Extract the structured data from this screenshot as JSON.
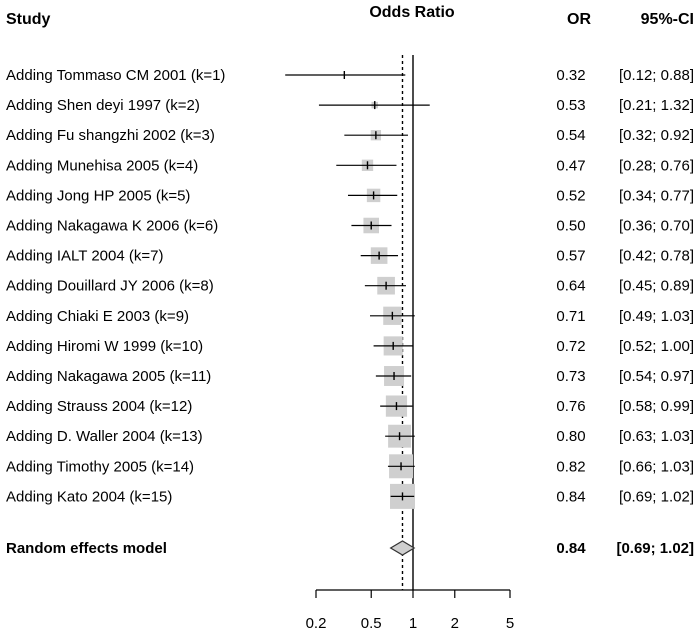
{
  "header": {
    "study": "Study",
    "plot": "Odds Ratio",
    "or": "OR",
    "ci": "95%-CI"
  },
  "chart_data": {
    "type": "forest",
    "x_scale": "log",
    "xlim": [
      0.2,
      5
    ],
    "x_ticks": [
      0.2,
      0.5,
      1,
      2,
      5
    ],
    "x_tick_labels": [
      "0.2",
      "0.5",
      "1",
      "2",
      "5"
    ],
    "null_line": 1,
    "summary_line": 0.84,
    "rows": [
      {
        "study": "Adding Tommaso CM  2001 (k=1)",
        "or": 0.32,
        "lo": 0.12,
        "hi": 0.88,
        "or_text": "0.32",
        "ci_text": "[0.12; 0.88]",
        "weight": 0.0
      },
      {
        "study": "Adding Shen deyi  1997 (k=2)",
        "or": 0.53,
        "lo": 0.21,
        "hi": 1.32,
        "or_text": "0.53",
        "ci_text": "[0.21; 1.32]",
        "weight": 0.12
      },
      {
        "study": "Adding Fu shangzhi  2002 (k=3)",
        "or": 0.54,
        "lo": 0.32,
        "hi": 0.92,
        "or_text": "0.54",
        "ci_text": "[0.32; 0.92]",
        "weight": 0.3
      },
      {
        "study": "Adding Munehisa  2005 (k=4)",
        "or": 0.47,
        "lo": 0.28,
        "hi": 0.76,
        "or_text": "0.47",
        "ci_text": "[0.28; 0.76]",
        "weight": 0.35
      },
      {
        "study": "Adding Jong HP  2005 (k=5)",
        "or": 0.52,
        "lo": 0.34,
        "hi": 0.77,
        "or_text": "0.52",
        "ci_text": "[0.34; 0.77]",
        "weight": 0.45
      },
      {
        "study": "Adding Nakagawa K  2006 (k=6)",
        "or": 0.5,
        "lo": 0.36,
        "hi": 0.7,
        "or_text": "0.50",
        "ci_text": "[0.36; 0.70]",
        "weight": 0.55
      },
      {
        "study": "Adding IALT  2004 (k=7)",
        "or": 0.57,
        "lo": 0.42,
        "hi": 0.78,
        "or_text": "0.57",
        "ci_text": "[0.42; 0.78]",
        "weight": 0.6
      },
      {
        "study": "Adding Douillard JY  2006 (k=8)",
        "or": 0.64,
        "lo": 0.45,
        "hi": 0.89,
        "or_text": "0.64",
        "ci_text": "[0.45; 0.89]",
        "weight": 0.65
      },
      {
        "study": "Adding Chiaki E  2003 (k=9)",
        "or": 0.71,
        "lo": 0.49,
        "hi": 1.03,
        "or_text": "0.71",
        "ci_text": "[0.49; 1.03]",
        "weight": 0.68
      },
      {
        "study": "Adding Hiromi W  1999 (k=10)",
        "or": 0.72,
        "lo": 0.52,
        "hi": 1.0,
        "or_text": "0.72",
        "ci_text": "[0.52; 1.00]",
        "weight": 0.72
      },
      {
        "study": "Adding Nakagawa  2005 (k=11)",
        "or": 0.73,
        "lo": 0.54,
        "hi": 0.97,
        "or_text": "0.73",
        "ci_text": "[0.54; 0.97]",
        "weight": 0.76
      },
      {
        "study": "Adding Strauss  2004 (k=12)",
        "or": 0.76,
        "lo": 0.58,
        "hi": 0.99,
        "or_text": "0.76",
        "ci_text": "[0.58; 0.99]",
        "weight": 0.82
      },
      {
        "study": "Adding D. Waller 2004 (k=13)",
        "or": 0.8,
        "lo": 0.63,
        "hi": 1.03,
        "or_text": "0.80",
        "ci_text": "[0.63; 1.03]",
        "weight": 0.9
      },
      {
        "study": "Adding Timothy  2005 (k=14)",
        "or": 0.82,
        "lo": 0.66,
        "hi": 1.03,
        "or_text": "0.82",
        "ci_text": "[0.66; 1.03]",
        "weight": 0.95
      },
      {
        "study": "Adding Kato  2004 (k=15)",
        "or": 0.84,
        "lo": 0.69,
        "hi": 1.02,
        "or_text": "0.84",
        "ci_text": "[0.69; 1.02]",
        "weight": 1.0
      }
    ],
    "summary": {
      "label": "Random effects model",
      "or": 0.84,
      "lo": 0.69,
      "hi": 1.02,
      "or_text": "0.84",
      "ci_text": "[0.69; 1.02]"
    },
    "colors": {
      "box": "#cfcfcf",
      "diamond": "#cfcfcf",
      "line": "#000000"
    }
  }
}
